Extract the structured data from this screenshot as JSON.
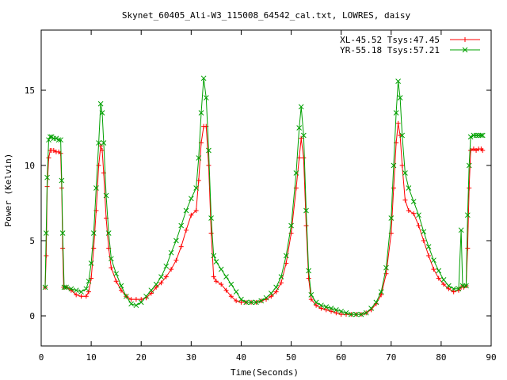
{
  "chart_data": {
    "type": "line",
    "title": "Skynet_60405_Ali-W3_115008_64542_cal.txt, LOWRES, daisy",
    "xlabel": "Time(Seconds)",
    "ylabel": "Power (Kelvin)",
    "xlim": [
      0,
      90
    ],
    "ylim": [
      -2,
      19
    ],
    "xticks": [
      0,
      10,
      20,
      30,
      40,
      50,
      60,
      70,
      80,
      90
    ],
    "yticks": [
      0,
      5,
      10,
      15
    ],
    "grid": false,
    "legend_position": "top-right",
    "series": [
      {
        "name": "XL-45.52 Tsys:47.45",
        "color": "#ff0000",
        "marker": "plus",
        "points": [
          [
            0.8,
            1.9
          ],
          [
            1.0,
            4.0
          ],
          [
            1.2,
            8.6
          ],
          [
            1.5,
            10.5
          ],
          [
            1.8,
            11.0
          ],
          [
            2.1,
            11.0
          ],
          [
            2.5,
            11.0
          ],
          [
            3.0,
            10.9
          ],
          [
            3.5,
            10.9
          ],
          [
            3.9,
            10.8
          ],
          [
            4.1,
            8.5
          ],
          [
            4.3,
            4.5
          ],
          [
            4.5,
            1.9
          ],
          [
            5.0,
            1.9
          ],
          [
            6.0,
            1.7
          ],
          [
            7.0,
            1.4
          ],
          [
            8.0,
            1.3
          ],
          [
            9.0,
            1.3
          ],
          [
            9.5,
            1.6
          ],
          [
            10.0,
            2.5
          ],
          [
            10.5,
            4.5
          ],
          [
            11.0,
            7.0
          ],
          [
            11.5,
            10.0
          ],
          [
            11.9,
            11.3
          ],
          [
            12.2,
            11.0
          ],
          [
            12.5,
            9.5
          ],
          [
            13.0,
            6.5
          ],
          [
            13.5,
            4.5
          ],
          [
            14.0,
            3.2
          ],
          [
            15.0,
            2.3
          ],
          [
            16.0,
            1.7
          ],
          [
            17.0,
            1.3
          ],
          [
            18.0,
            1.1
          ],
          [
            19.0,
            1.1
          ],
          [
            20.0,
            1.1
          ],
          [
            21.0,
            1.2
          ],
          [
            22.0,
            1.5
          ],
          [
            23.0,
            1.9
          ],
          [
            24.0,
            2.2
          ],
          [
            25.0,
            2.6
          ],
          [
            26.0,
            3.1
          ],
          [
            27.0,
            3.7
          ],
          [
            28.0,
            4.6
          ],
          [
            29.0,
            5.7
          ],
          [
            30.0,
            6.7
          ],
          [
            31.0,
            7.0
          ],
          [
            31.5,
            9.0
          ],
          [
            32.0,
            11.5
          ],
          [
            32.5,
            12.6
          ],
          [
            33.0,
            12.6
          ],
          [
            33.5,
            10.0
          ],
          [
            34.0,
            5.5
          ],
          [
            34.5,
            2.6
          ],
          [
            35.0,
            2.3
          ],
          [
            36.0,
            2.1
          ],
          [
            37.0,
            1.7
          ],
          [
            38.0,
            1.3
          ],
          [
            39.0,
            1.0
          ],
          [
            40.0,
            0.9
          ],
          [
            41.0,
            0.9
          ],
          [
            42.0,
            0.9
          ],
          [
            43.0,
            0.9
          ],
          [
            44.0,
            1.0
          ],
          [
            45.0,
            1.1
          ],
          [
            46.0,
            1.3
          ],
          [
            47.0,
            1.6
          ],
          [
            48.0,
            2.2
          ],
          [
            49.0,
            3.5
          ],
          [
            50.0,
            5.5
          ],
          [
            51.0,
            8.5
          ],
          [
            51.6,
            10.5
          ],
          [
            52.0,
            11.8
          ],
          [
            52.5,
            10.5
          ],
          [
            53.0,
            6.0
          ],
          [
            53.5,
            2.5
          ],
          [
            54.0,
            1.1
          ],
          [
            55.0,
            0.7
          ],
          [
            56.0,
            0.5
          ],
          [
            57.0,
            0.4
          ],
          [
            58.0,
            0.3
          ],
          [
            59.0,
            0.2
          ],
          [
            60.0,
            0.1
          ],
          [
            61.0,
            0.1
          ],
          [
            62.0,
            0.1
          ],
          [
            63.0,
            0.1
          ],
          [
            64.0,
            0.1
          ],
          [
            65.0,
            0.2
          ],
          [
            66.0,
            0.4
          ],
          [
            67.0,
            0.8
          ],
          [
            68.0,
            1.4
          ],
          [
            69.0,
            2.8
          ],
          [
            70.0,
            5.5
          ],
          [
            70.5,
            8.5
          ],
          [
            71.0,
            11.5
          ],
          [
            71.4,
            12.8
          ],
          [
            71.8,
            12.0
          ],
          [
            72.2,
            10.0
          ],
          [
            72.8,
            7.7
          ],
          [
            73.5,
            7.0
          ],
          [
            74.5,
            6.8
          ],
          [
            75.5,
            6.0
          ],
          [
            76.5,
            5.0
          ],
          [
            77.5,
            4.0
          ],
          [
            78.5,
            3.1
          ],
          [
            79.5,
            2.5
          ],
          [
            80.5,
            2.1
          ],
          [
            81.5,
            1.8
          ],
          [
            82.5,
            1.6
          ],
          [
            83.5,
            1.7
          ],
          [
            84.0,
            1.9
          ],
          [
            84.5,
            1.9
          ],
          [
            85.0,
            2.0
          ],
          [
            85.3,
            4.5
          ],
          [
            85.6,
            8.5
          ],
          [
            85.9,
            11.0
          ],
          [
            86.5,
            11.1
          ],
          [
            87.0,
            11.0
          ],
          [
            87.5,
            11.1
          ],
          [
            88.0,
            11.1
          ],
          [
            88.3,
            11.0
          ]
        ]
      },
      {
        "name": "YR-55.18 Tsys:57.21",
        "color": "#00a000",
        "marker": "cross",
        "points": [
          [
            0.8,
            1.9
          ],
          [
            1.0,
            5.5
          ],
          [
            1.2,
            9.2
          ],
          [
            1.5,
            11.7
          ],
          [
            1.8,
            11.9
          ],
          [
            2.1,
            11.9
          ],
          [
            2.5,
            11.8
          ],
          [
            3.0,
            11.8
          ],
          [
            3.5,
            11.7
          ],
          [
            3.9,
            11.7
          ],
          [
            4.1,
            9.0
          ],
          [
            4.3,
            5.5
          ],
          [
            4.6,
            1.9
          ],
          [
            5.0,
            1.9
          ],
          [
            6.0,
            1.8
          ],
          [
            7.0,
            1.7
          ],
          [
            8.0,
            1.6
          ],
          [
            9.0,
            1.8
          ],
          [
            9.5,
            2.3
          ],
          [
            10.0,
            3.5
          ],
          [
            10.5,
            5.5
          ],
          [
            11.0,
            8.5
          ],
          [
            11.5,
            11.5
          ],
          [
            11.9,
            14.1
          ],
          [
            12.2,
            13.5
          ],
          [
            12.5,
            11.5
          ],
          [
            13.0,
            8.0
          ],
          [
            13.5,
            5.5
          ],
          [
            14.0,
            3.8
          ],
          [
            15.0,
            2.8
          ],
          [
            16.0,
            2.0
          ],
          [
            17.0,
            1.3
          ],
          [
            18.0,
            0.8
          ],
          [
            19.0,
            0.7
          ],
          [
            20.0,
            0.9
          ],
          [
            21.0,
            1.3
          ],
          [
            22.0,
            1.7
          ],
          [
            23.0,
            2.1
          ],
          [
            24.0,
            2.6
          ],
          [
            25.0,
            3.3
          ],
          [
            26.0,
            4.2
          ],
          [
            27.0,
            5.0
          ],
          [
            28.0,
            6.0
          ],
          [
            29.0,
            7.0
          ],
          [
            30.0,
            7.8
          ],
          [
            31.0,
            8.5
          ],
          [
            31.5,
            10.5
          ],
          [
            32.0,
            13.5
          ],
          [
            32.5,
            15.8
          ],
          [
            33.0,
            14.5
          ],
          [
            33.5,
            11.0
          ],
          [
            34.0,
            6.5
          ],
          [
            34.5,
            4.0
          ],
          [
            35.0,
            3.6
          ],
          [
            36.0,
            3.1
          ],
          [
            37.0,
            2.6
          ],
          [
            38.0,
            2.1
          ],
          [
            39.0,
            1.6
          ],
          [
            40.0,
            1.1
          ],
          [
            41.0,
            0.9
          ],
          [
            42.0,
            0.9
          ],
          [
            43.0,
            0.9
          ],
          [
            44.0,
            1.0
          ],
          [
            45.0,
            1.2
          ],
          [
            46.0,
            1.5
          ],
          [
            47.0,
            1.9
          ],
          [
            48.0,
            2.6
          ],
          [
            49.0,
            4.0
          ],
          [
            50.0,
            6.0
          ],
          [
            51.0,
            9.5
          ],
          [
            51.6,
            12.5
          ],
          [
            52.0,
            13.9
          ],
          [
            52.5,
            12.0
          ],
          [
            53.0,
            7.0
          ],
          [
            53.5,
            3.0
          ],
          [
            54.0,
            1.4
          ],
          [
            55.0,
            0.9
          ],
          [
            56.0,
            0.7
          ],
          [
            57.0,
            0.6
          ],
          [
            58.0,
            0.5
          ],
          [
            59.0,
            0.4
          ],
          [
            60.0,
            0.3
          ],
          [
            61.0,
            0.2
          ],
          [
            62.0,
            0.1
          ],
          [
            63.0,
            0.1
          ],
          [
            64.0,
            0.1
          ],
          [
            65.0,
            0.2
          ],
          [
            66.0,
            0.5
          ],
          [
            67.0,
            0.9
          ],
          [
            68.0,
            1.6
          ],
          [
            69.0,
            3.2
          ],
          [
            70.0,
            6.5
          ],
          [
            70.5,
            10.0
          ],
          [
            71.0,
            13.5
          ],
          [
            71.4,
            15.6
          ],
          [
            71.8,
            14.5
          ],
          [
            72.2,
            12.0
          ],
          [
            72.8,
            9.5
          ],
          [
            73.5,
            8.5
          ],
          [
            74.5,
            7.6
          ],
          [
            75.5,
            6.7
          ],
          [
            76.5,
            5.6
          ],
          [
            77.5,
            4.6
          ],
          [
            78.5,
            3.7
          ],
          [
            79.5,
            3.0
          ],
          [
            80.5,
            2.4
          ],
          [
            81.5,
            2.0
          ],
          [
            82.5,
            1.8
          ],
          [
            83.5,
            1.8
          ],
          [
            84.0,
            5.7
          ],
          [
            84.3,
            2.0
          ],
          [
            85.0,
            2.0
          ],
          [
            85.3,
            6.7
          ],
          [
            85.6,
            10.0
          ],
          [
            85.9,
            11.9
          ],
          [
            86.5,
            12.0
          ],
          [
            87.0,
            12.0
          ],
          [
            87.5,
            12.0
          ],
          [
            88.0,
            12.0
          ],
          [
            88.3,
            12.0
          ]
        ]
      }
    ]
  }
}
